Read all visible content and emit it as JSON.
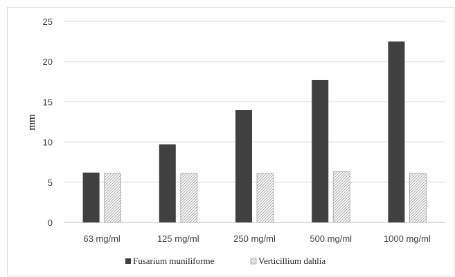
{
  "chart_data": {
    "type": "bar",
    "categories": [
      "63 mg/ml",
      "125 mg/ml",
      "250 mg/ml",
      "500 mg/ml",
      "1000 mg/ml"
    ],
    "series": [
      {
        "name": "Fusarium muniliforme",
        "values": [
          6.2,
          9.7,
          14.0,
          17.7,
          22.5
        ],
        "color": "#404040",
        "pattern": "solid"
      },
      {
        "name": "Verticillium dahlia",
        "values": [
          6.1,
          6.1,
          6.1,
          6.3,
          6.1
        ],
        "color": "#a6a6a6",
        "pattern": "diagonal-hatch"
      }
    ],
    "title": "",
    "xlabel": "",
    "ylabel": "mm",
    "ylim": [
      0,
      25
    ],
    "yticks": [
      0,
      5,
      10,
      15,
      20,
      25
    ],
    "grid": "horizontal",
    "legend": "bottom"
  }
}
